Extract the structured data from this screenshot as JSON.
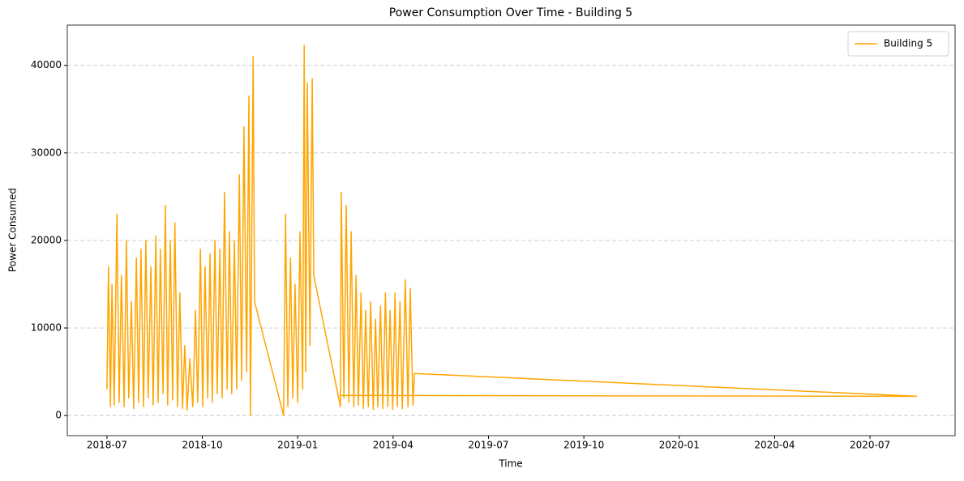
{
  "chart_data": {
    "type": "line",
    "title": "Power Consumption Over Time - Building 5",
    "xlabel": "Time",
    "ylabel": "Power Consumed",
    "x": [
      2018.5,
      2018.504,
      2018.509,
      2018.513,
      2018.519,
      2018.526,
      2018.532,
      2018.538,
      2018.545,
      2018.551,
      2018.557,
      2018.564,
      2018.57,
      2018.577,
      2018.583,
      2018.589,
      2018.596,
      2018.602,
      2018.608,
      2018.615,
      2018.621,
      2018.628,
      2018.634,
      2018.64,
      2018.647,
      2018.653,
      2018.659,
      2018.666,
      2018.672,
      2018.678,
      2018.685,
      2018.691,
      2018.698,
      2018.704,
      2018.71,
      2018.717,
      2018.725,
      2018.732,
      2018.738,
      2018.745,
      2018.751,
      2018.757,
      2018.764,
      2018.77,
      2018.776,
      2018.783,
      2018.789,
      2018.796,
      2018.802,
      2018.808,
      2018.815,
      2018.821,
      2018.827,
      2018.834,
      2018.84,
      2018.847,
      2018.853,
      2018.859,
      2018.866,
      2018.872,
      2018.876,
      2018.883,
      2018.887,
      2018.963,
      2018.968,
      2018.974,
      2018.981,
      2018.987,
      2018.993,
      2019.0,
      2019.006,
      2019.013,
      2019.017,
      2019.021,
      2019.025,
      2019.032,
      2019.038,
      2019.042,
      2019.112,
      2019.114,
      2019.121,
      2019.127,
      2019.134,
      2019.14,
      2019.147,
      2019.153,
      2019.159,
      2019.166,
      2019.172,
      2019.178,
      2019.185,
      2019.191,
      2019.198,
      2019.204,
      2019.21,
      2019.217,
      2019.223,
      2019.23,
      2019.236,
      2019.242,
      2019.249,
      2019.255,
      2019.261,
      2019.268,
      2019.274,
      2019.282,
      2019.289,
      2019.295,
      2019.302,
      2019.306,
      2020.622,
      2019.112
    ],
    "series": [
      {
        "name": "Building 5",
        "color": "#ffa500",
        "values": [
          3000,
          17000,
          1000,
          15000,
          1200,
          23000,
          1500,
          16000,
          1000,
          20000,
          2000,
          13000,
          800,
          18000,
          1500,
          19000,
          1000,
          20000,
          2000,
          17000,
          1200,
          20500,
          1500,
          19000,
          2500,
          24000,
          1200,
          20000,
          1800,
          22000,
          1000,
          14000,
          800,
          8000,
          600,
          6500,
          1000,
          12000,
          1500,
          19000,
          1000,
          17000,
          2000,
          18500,
          1500,
          20000,
          2500,
          19000,
          2000,
          25500,
          3000,
          21000,
          2500,
          20000,
          3000,
          27500,
          4000,
          33000,
          5000,
          36500,
          0,
          41000,
          13000,
          0,
          23000,
          1000,
          18000,
          2000,
          15000,
          1500,
          21000,
          3000,
          42300,
          5000,
          38000,
          8000,
          38500,
          16000,
          1000,
          25500,
          2000,
          24000,
          1500,
          21000,
          1000,
          16000,
          1200,
          14000,
          800,
          12000,
          1000,
          13000,
          700,
          11000,
          1000,
          12500,
          800,
          14000,
          1000,
          12000,
          700,
          14000,
          1000,
          13000,
          800,
          15500,
          1000,
          14500,
          1200,
          4800,
          2200,
          2300
        ]
      }
    ],
    "xlim": [
      2018.396,
      2020.723
    ],
    "xticks": [
      {
        "value": 2018.5,
        "label": "2018-07"
      },
      {
        "value": 2018.75,
        "label": "2018-10"
      },
      {
        "value": 2019.0,
        "label": "2019-01"
      },
      {
        "value": 2019.25,
        "label": "2019-04"
      },
      {
        "value": 2019.5,
        "label": "2019-07"
      },
      {
        "value": 2019.75,
        "label": "2019-10"
      },
      {
        "value": 2020.0,
        "label": "2020-01"
      },
      {
        "value": 2020.25,
        "label": "2020-04"
      },
      {
        "value": 2020.5,
        "label": "2020-07"
      }
    ],
    "ylim": [
      -2300,
      44600
    ],
    "yticks": [
      0,
      10000,
      20000,
      30000,
      40000
    ],
    "grid": true,
    "legend": "upper right"
  }
}
